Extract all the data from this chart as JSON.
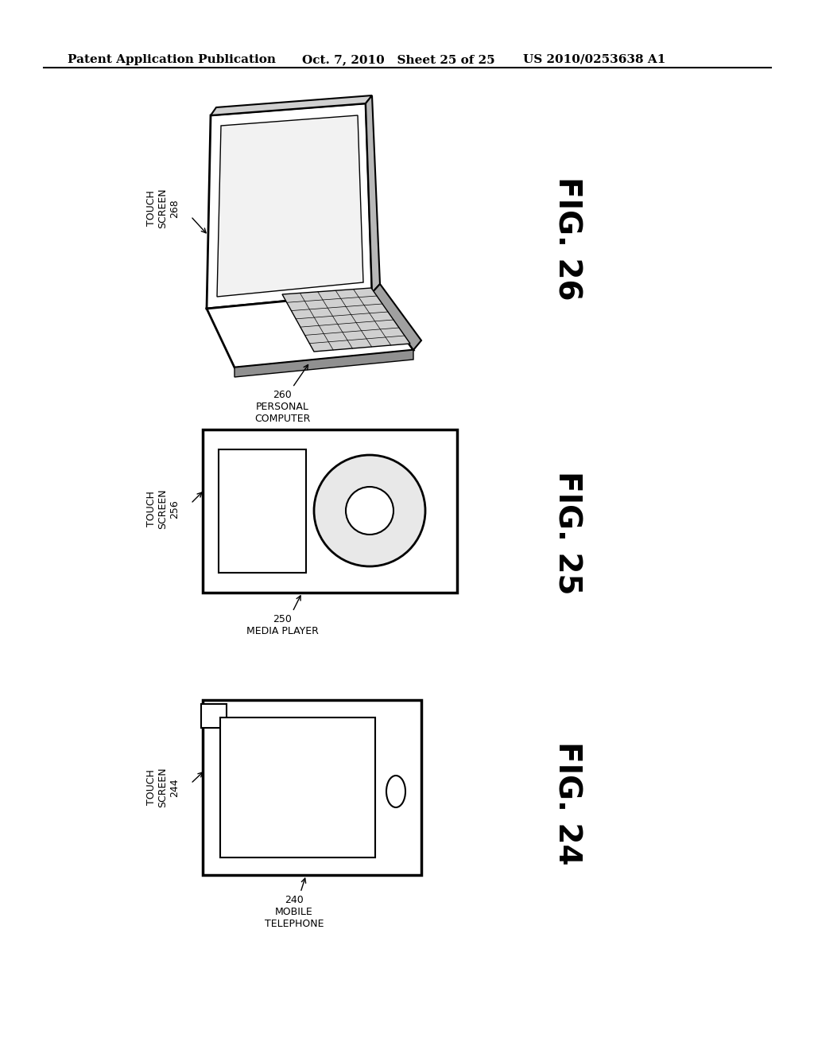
{
  "bg_color": "#ffffff",
  "header_left": "Patent Application Publication",
  "header_mid": "Oct. 7, 2010   Sheet 25 of 25",
  "header_right": "US 2010/0253638 A1",
  "fig26_label": "FIG. 26",
  "fig25_label": "FIG. 25",
  "fig24_label": "FIG. 24",
  "pc_label": "260\nPERSONAL\nCOMPUTER",
  "media_label": "250\nMEDIA PLAYER",
  "phone_label": "240\nMOBILE\nTELEPHONE",
  "ts26_label": "TOUCH\nSCREEN\n268",
  "ts25_label": "TOUCH\nSCREEN\n256",
  "ts24_label": "TOUCH\nSCREEN\n244"
}
